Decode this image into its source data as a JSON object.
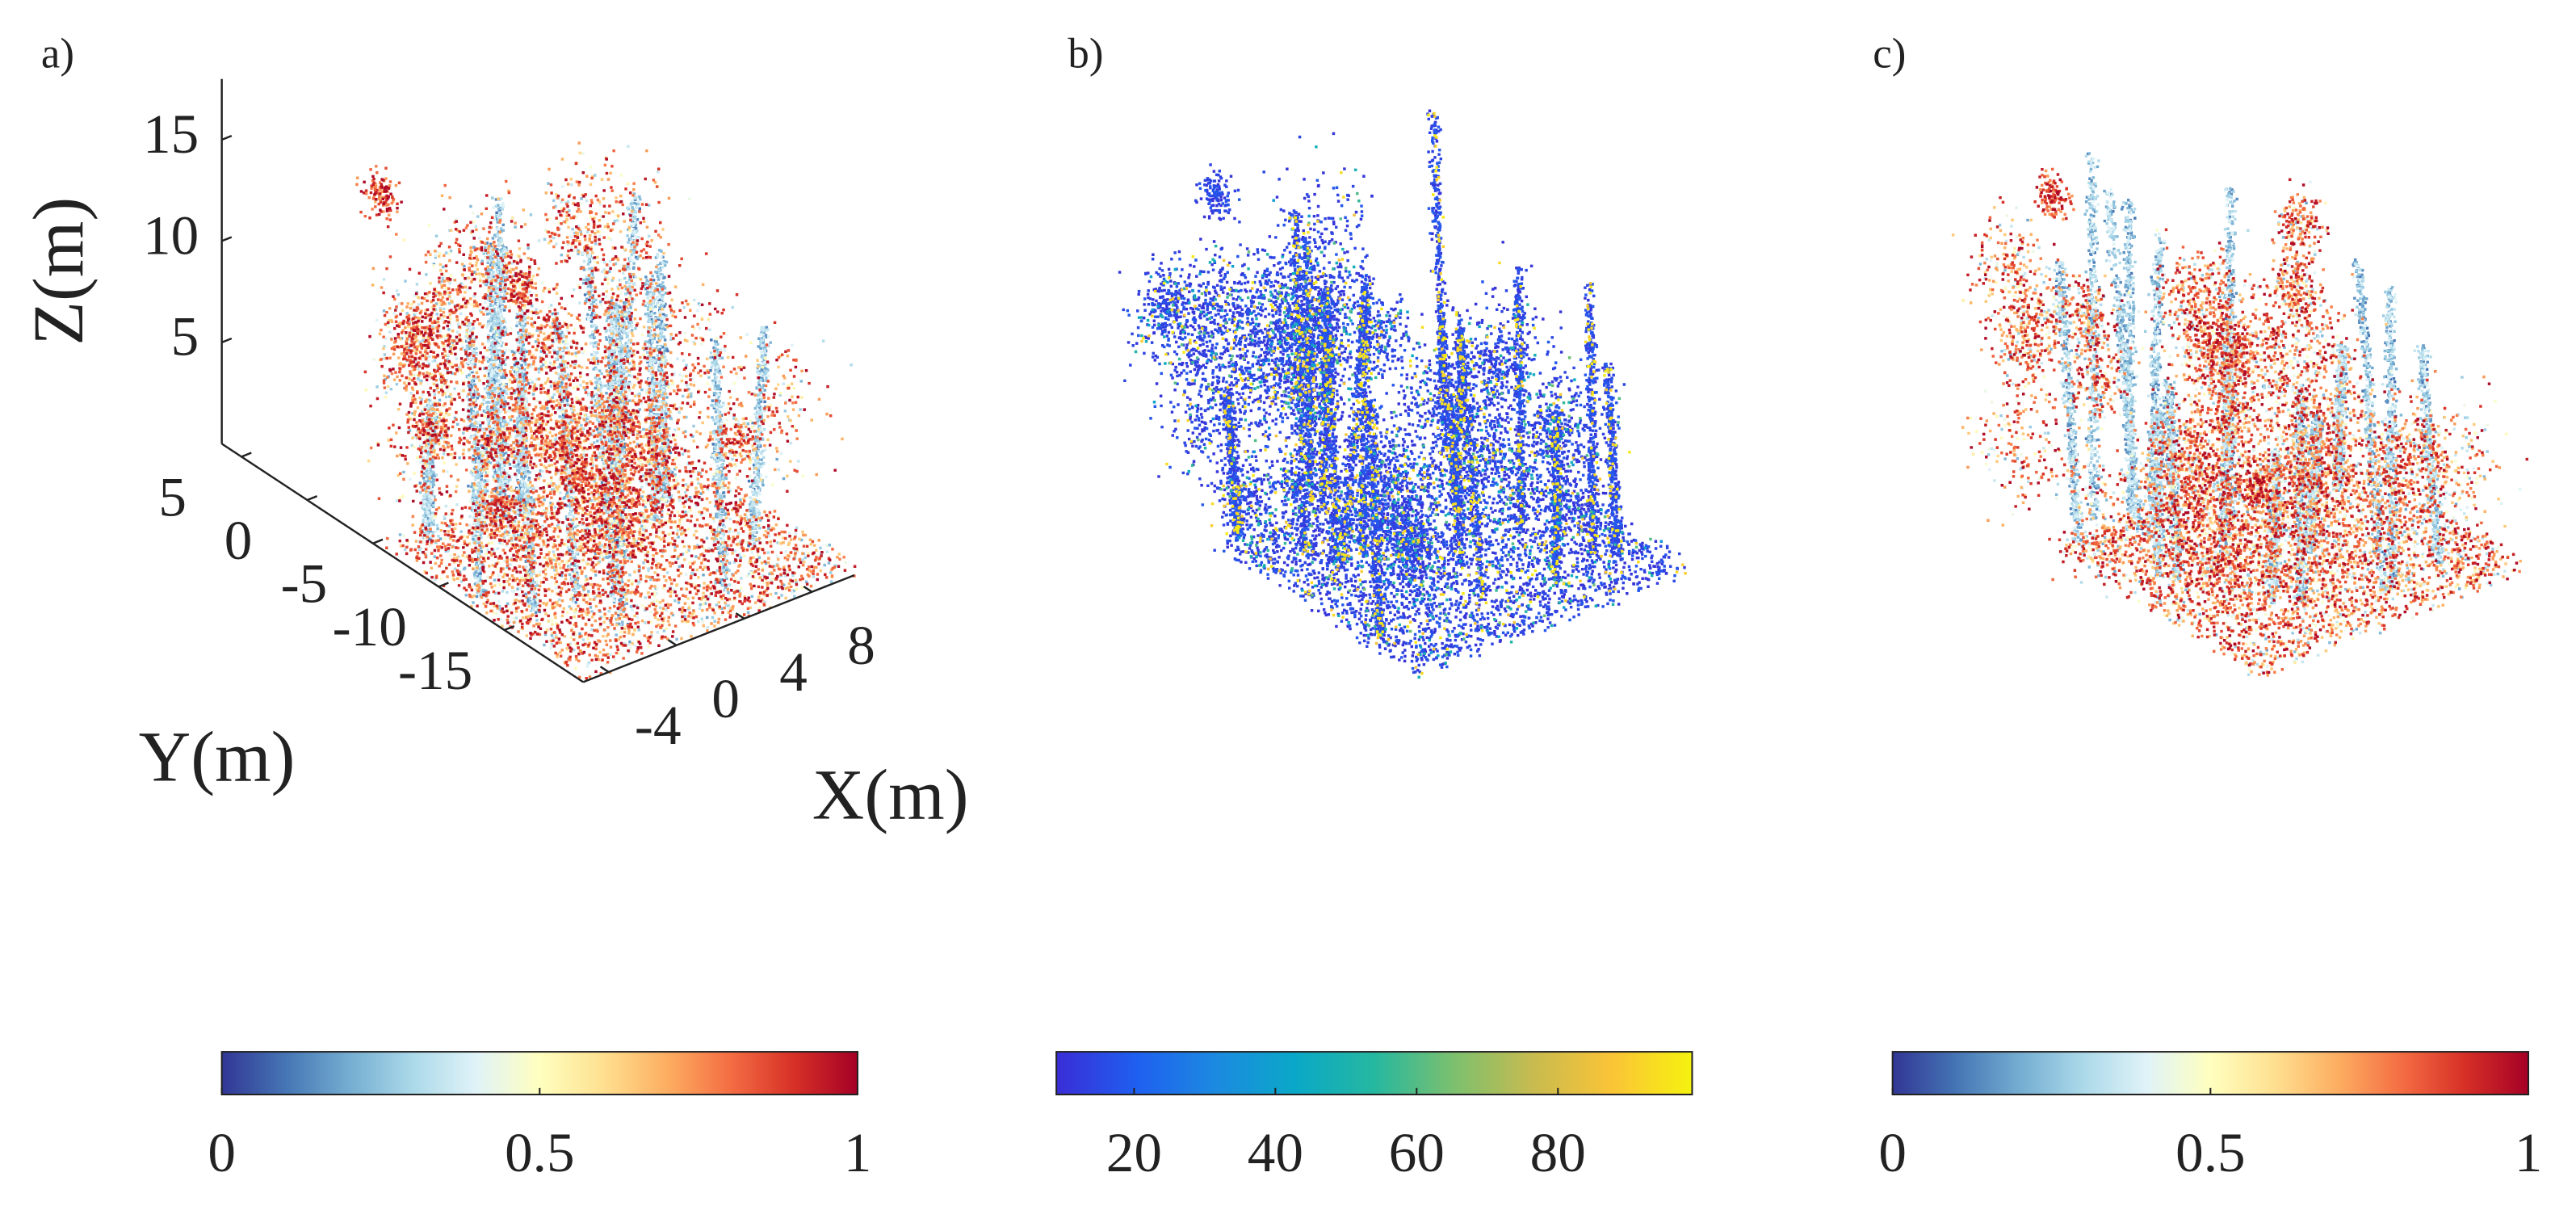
{
  "chart_data": [
    {
      "type": "scatter3d",
      "panel_label": "a)",
      "xlabel": "X(m)",
      "ylabel": "Y(m)",
      "zlabel": "Z(m)",
      "xlim": [
        -5.5,
        10.5
      ],
      "xticks": [
        -4,
        0,
        4,
        8
      ],
      "ylim": [
        -21,
        6.5
      ],
      "yticks": [
        5,
        0,
        -5,
        -10,
        -15
      ],
      "zlim": [
        0,
        18
      ],
      "zticks": [
        5,
        10,
        15
      ],
      "colormap": [
        "#313695",
        "#4575b4",
        "#74add1",
        "#abd9e9",
        "#e0f3f8",
        "#ffffbf",
        "#fee090",
        "#fdae61",
        "#f46d43",
        "#d73027",
        "#a50026"
      ],
      "colorbar": {
        "lim": [
          0,
          1
        ],
        "ticks": [
          0,
          0.5,
          1
        ]
      }
    },
    {
      "type": "scatter3d",
      "panel_label": "b)",
      "colormap": [
        "#3a2dd6",
        "#1f5ff0",
        "#1c8ae0",
        "#0aa8c8",
        "#25b8a0",
        "#7cc06e",
        "#c8bb4f",
        "#fbc437",
        "#f5f20f"
      ],
      "colorbar": {
        "lim": [
          9,
          99
        ],
        "ticks": [
          20,
          40,
          60,
          80
        ]
      }
    },
    {
      "type": "scatter3d",
      "panel_label": "c)",
      "colormap": [
        "#313695",
        "#4575b4",
        "#74add1",
        "#abd9e9",
        "#e0f3f8",
        "#ffffbf",
        "#fee090",
        "#fdae61",
        "#f46d43",
        "#d73027",
        "#a50026"
      ],
      "colorbar": {
        "lim": [
          0,
          1
        ],
        "ticks": [
          0,
          0.5,
          1
        ]
      }
    }
  ]
}
